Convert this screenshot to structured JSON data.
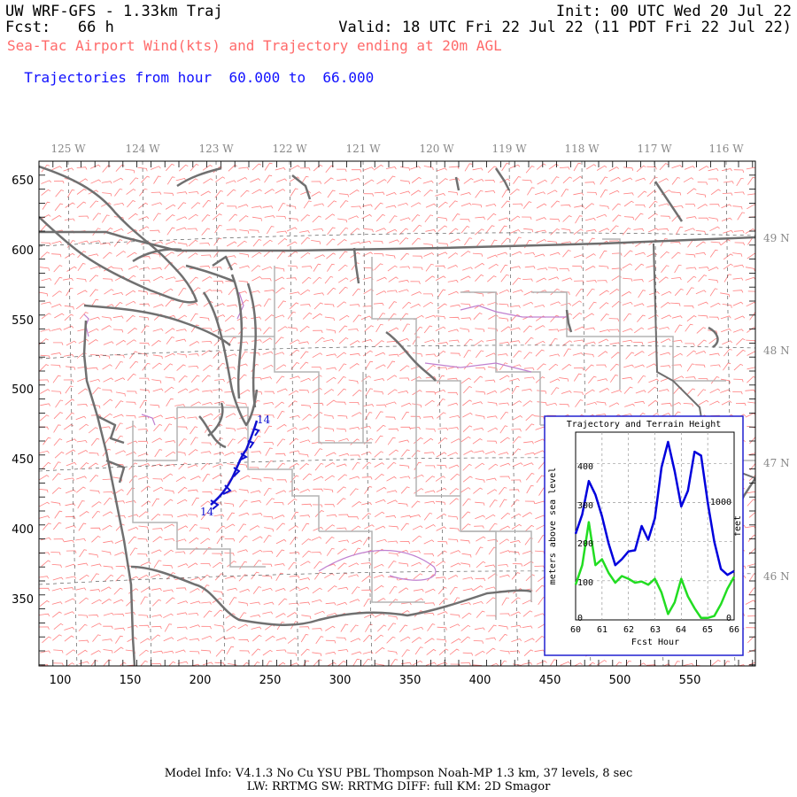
{
  "header": {
    "title": "UW WRF-GFS - 1.33km Traj",
    "fcst": "Fcst:   66 h",
    "init": "Init: 00 UTC Wed 20 Jul 22",
    "valid": "Valid: 18 UTC Fri 22 Jul 22 (11 PDT Fri 22 Jul 22)",
    "subtitle": "Sea-Tac Airport Wind(kts) and Trajectory ending at 20m AGL",
    "traj_prefix": "Trajectories from hour",
    "traj_from": "60.000",
    "traj_to_word": "to",
    "traj_to": "66.000"
  },
  "map": {
    "lon_labels": [
      "125 W",
      "124 W",
      "123 W",
      "122 W",
      "121 W",
      "120 W",
      "119 W",
      "118 W",
      "117 W",
      "116 W"
    ],
    "lat_labels": [
      "49 N",
      "48 N",
      "47 N",
      "46 N"
    ],
    "x_ticks": [
      "100",
      "150",
      "200",
      "250",
      "300",
      "350",
      "400",
      "450",
      "500",
      "550"
    ],
    "y_ticks": [
      "650",
      "600",
      "550",
      "500",
      "450",
      "400",
      "350"
    ],
    "trajectory_labels": [
      "14",
      "14"
    ],
    "colors": {
      "barbs": "#ff8080",
      "coast": "#707070",
      "borders": "#b0b0b0",
      "trajectory": "#1010d0",
      "rivers": "#c080d0"
    }
  },
  "inset": {
    "title": "Trajectory and Terrain Height",
    "ylabel_left": "meters above sea level",
    "ylabel_right": "feet",
    "xlabel": "Fcst Hour",
    "x_ticks": [
      "60",
      "61",
      "62",
      "63",
      "64",
      "65",
      "66"
    ],
    "y_ticks": [
      "0",
      "100",
      "200",
      "300",
      "400"
    ],
    "right_ticks": [
      "0",
      "1000"
    ]
  },
  "chart_data": {
    "type": "line",
    "title": "Trajectory and Terrain Height",
    "xlabel": "Fcst Hour",
    "ylabel": "meters above sea level",
    "xlim": [
      60,
      66
    ],
    "ylim": [
      0,
      480
    ],
    "x": [
      60.0,
      60.25,
      60.5,
      60.75,
      61.0,
      61.25,
      61.5,
      61.75,
      62.0,
      62.25,
      62.5,
      62.75,
      63.0,
      63.25,
      63.5,
      63.75,
      64.0,
      64.25,
      64.5,
      64.75,
      65.0,
      65.25,
      65.5,
      65.75,
      66.0
    ],
    "series": [
      {
        "name": "trajectory",
        "color": "#0000dd",
        "values": [
          220,
          270,
          355,
          320,
          265,
          195,
          140,
          155,
          175,
          178,
          240,
          205,
          260,
          390,
          455,
          380,
          290,
          330,
          430,
          420,
          300,
          200,
          130,
          115,
          125
        ]
      },
      {
        "name": "terrain",
        "color": "#22dd22",
        "values": [
          90,
          140,
          250,
          140,
          155,
          120,
          95,
          112,
          105,
          95,
          98,
          90,
          105,
          70,
          15,
          45,
          105,
          60,
          30,
          5,
          5,
          10,
          40,
          80,
          110
        ]
      }
    ]
  },
  "footer": {
    "line1": "Model Info: V4.1.3    No Cu    YSU PBL  Thompson     Noah-MP    1.3 km,  37 levels,     8 sec",
    "line2": "LW: RRTMG SW: RRTMG    DIFF: full    KM: 2D Smagor"
  }
}
